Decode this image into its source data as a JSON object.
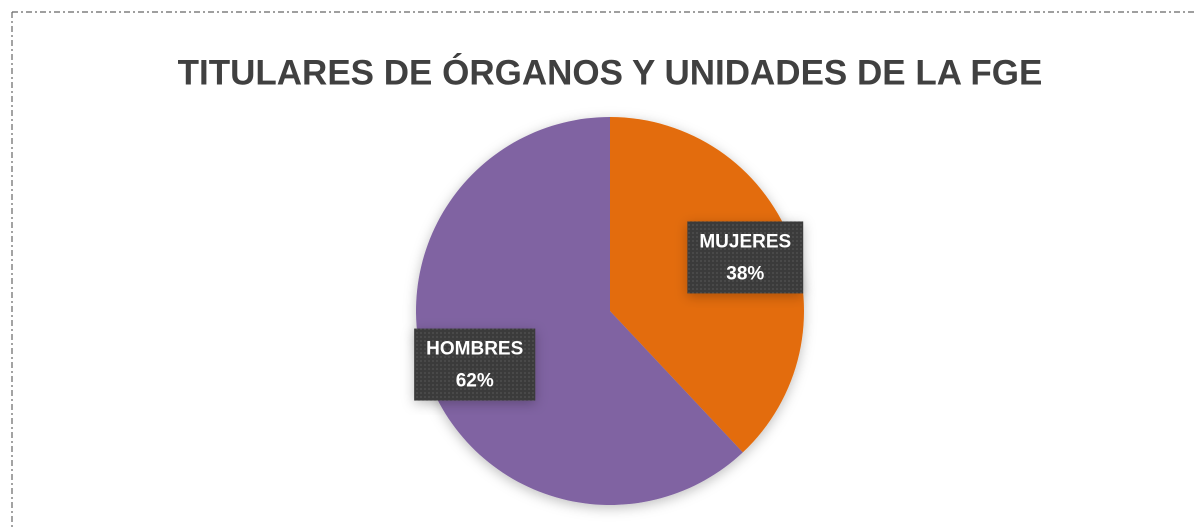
{
  "chart_data": {
    "type": "pie",
    "title": "TITULARES DE ÓRGANOS Y UNIDADES DE LA FGE",
    "categories": [
      "MUJERES",
      "HOMBRES"
    ],
    "values": [
      38,
      62
    ],
    "value_labels": [
      "38%",
      "62%"
    ],
    "colors": [
      "#e36c0a",
      "#8064a2"
    ]
  }
}
